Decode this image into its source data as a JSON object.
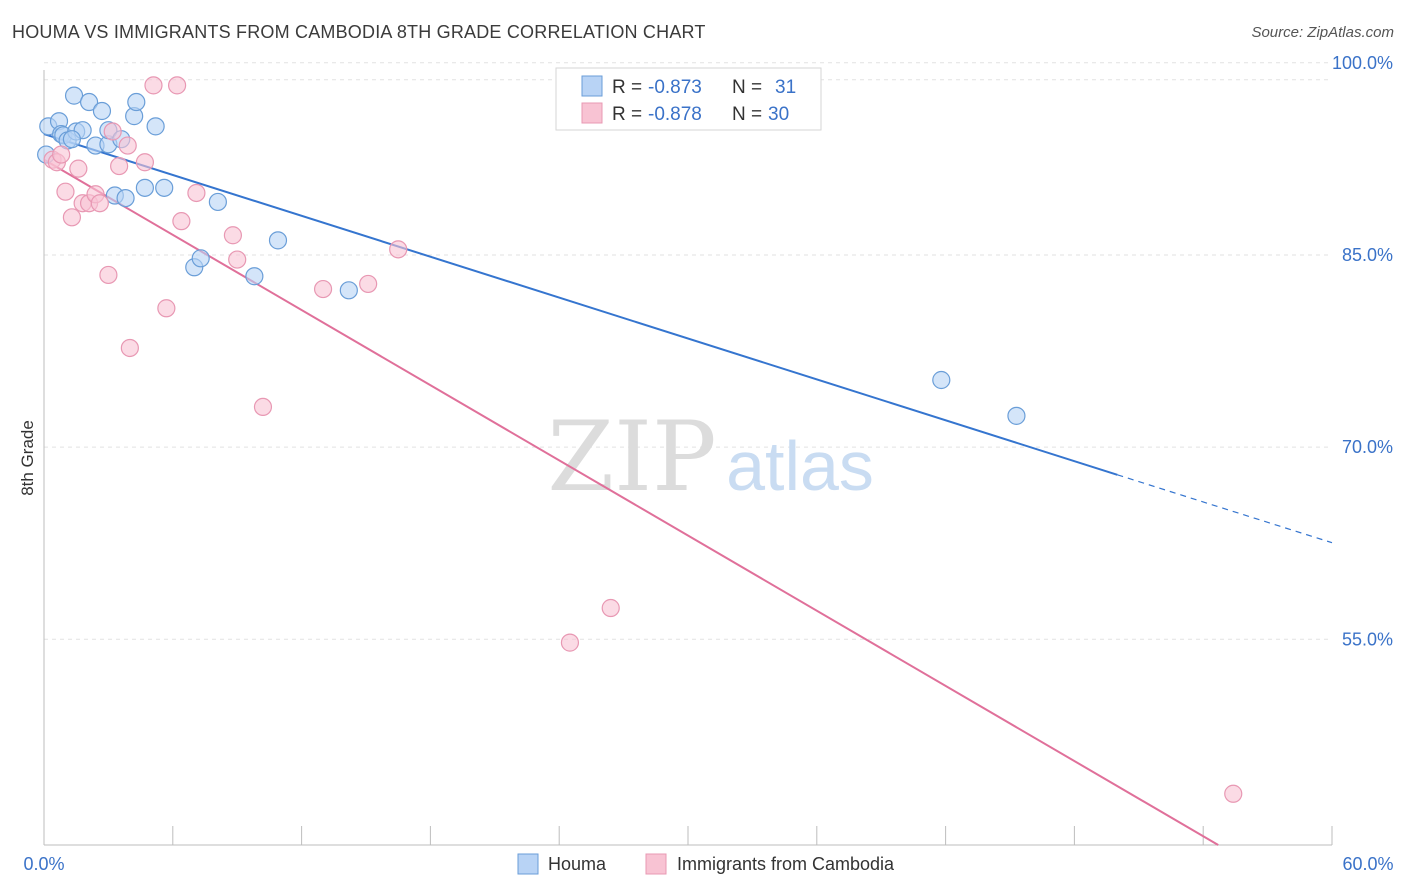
{
  "header": {
    "title": "HOUMA VS IMMIGRANTS FROM CAMBODIA 8TH GRADE CORRELATION CHART",
    "source": "Source: ZipAtlas.com"
  },
  "watermark": {
    "zip": "ZIP",
    "atlas": "atlas"
  },
  "colors": {
    "blue_fill": "#b8d3f5",
    "blue_stroke": "#6a9ed8",
    "blue_line": "#3575cf",
    "pink_fill": "#f8c3d3",
    "pink_stroke": "#e898b3",
    "pink_line": "#e0709a",
    "tick_text": "#3a72c8",
    "grid": "#e2e2e2"
  },
  "stats": [
    {
      "r_label": "R =",
      "r_value": "-0.873",
      "n_label": "N =",
      "n_value": "31"
    },
    {
      "r_label": "R =",
      "r_value": "-0.878",
      "n_label": "N =",
      "n_value": "30"
    }
  ],
  "legend": {
    "items": [
      "Houma",
      "Immigrants from Cambodia"
    ]
  },
  "chart_data": {
    "type": "scatter",
    "title": "HOUMA VS IMMIGRANTS FROM CAMBODIA 8TH GRADE CORRELATION CHART",
    "ylabel": "8th Grade",
    "xlabel": "",
    "xlim": [
      0,
      60
    ],
    "ylim": [
      40.5,
      101
    ],
    "x_tick_labels": [
      "0.0%",
      "60.0%"
    ],
    "y_ticks": [
      100,
      85,
      70,
      55
    ],
    "y_tick_labels": [
      "100.0%",
      "85.0%",
      "70.0%",
      "55.0%"
    ],
    "grid": true,
    "legend_position": "bottom",
    "series": [
      {
        "name": "Houma",
        "points": [
          [
            0.2,
            96.6
          ],
          [
            0.7,
            97.0
          ],
          [
            0.8,
            96.0
          ],
          [
            0.9,
            95.9
          ],
          [
            1.1,
            95.5
          ],
          [
            1.4,
            99.0
          ],
          [
            1.5,
            96.2
          ],
          [
            1.8,
            96.3
          ],
          [
            2.1,
            98.5
          ],
          [
            2.4,
            95.1
          ],
          [
            2.7,
            97.8
          ],
          [
            3.0,
            95.2
          ],
          [
            3.0,
            96.3
          ],
          [
            3.3,
            91.2
          ],
          [
            3.6,
            95.6
          ],
          [
            3.8,
            91.0
          ],
          [
            4.2,
            97.4
          ],
          [
            4.3,
            98.5
          ],
          [
            4.7,
            91.8
          ],
          [
            5.2,
            96.6
          ],
          [
            5.6,
            91.8
          ],
          [
            7.0,
            85.6
          ],
          [
            7.3,
            86.3
          ],
          [
            8.1,
            90.7
          ],
          [
            9.8,
            84.9
          ],
          [
            10.9,
            87.7
          ],
          [
            14.2,
            83.8
          ],
          [
            41.8,
            76.8
          ],
          [
            45.3,
            74.0
          ],
          [
            0.1,
            94.4
          ],
          [
            1.3,
            95.6
          ]
        ],
        "trend": {
          "x0": 0,
          "y0": 96.0,
          "x1": 50.0,
          "y1": 69.4,
          "dash_to_x": 60,
          "dash_to_y": 64.1
        }
      },
      {
        "name": "Immigrants from Cambodia",
        "points": [
          [
            0.4,
            94.0
          ],
          [
            0.6,
            93.8
          ],
          [
            0.8,
            94.4
          ],
          [
            1.0,
            91.5
          ],
          [
            1.3,
            89.5
          ],
          [
            1.6,
            93.3
          ],
          [
            1.8,
            90.6
          ],
          [
            2.1,
            90.6
          ],
          [
            2.4,
            91.3
          ],
          [
            2.6,
            90.6
          ],
          [
            3.0,
            85.0
          ],
          [
            3.2,
            96.2
          ],
          [
            3.5,
            93.5
          ],
          [
            3.9,
            95.1
          ],
          [
            4.0,
            79.3
          ],
          [
            4.7,
            93.8
          ],
          [
            5.1,
            99.8
          ],
          [
            5.7,
            82.4
          ],
          [
            6.2,
            99.8
          ],
          [
            6.4,
            89.2
          ],
          [
            7.1,
            91.4
          ],
          [
            8.8,
            88.1
          ],
          [
            9.0,
            86.2
          ],
          [
            10.2,
            74.7
          ],
          [
            13.0,
            83.9
          ],
          [
            15.1,
            84.3
          ],
          [
            16.5,
            87.0
          ],
          [
            24.5,
            56.3
          ],
          [
            26.4,
            59.0
          ],
          [
            55.4,
            44.5
          ]
        ],
        "trend": {
          "x0": 0,
          "y0": 94.0,
          "x1": 54.7,
          "y1": 40.5
        }
      }
    ]
  }
}
